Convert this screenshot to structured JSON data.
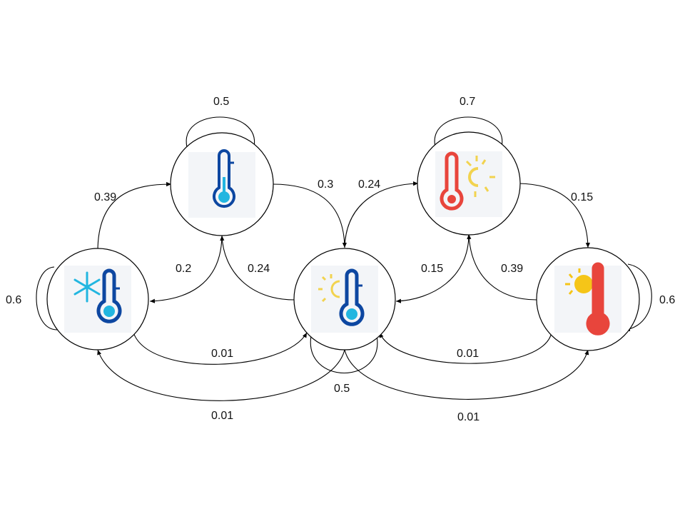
{
  "diagram": {
    "type": "markov-chain",
    "nodes": [
      {
        "id": "cold",
        "icon": "snowflake-thermometer-icon",
        "thermo_color": "#0d47a1",
        "accent": "#22b6e0"
      },
      {
        "id": "cool",
        "icon": "blue-thermometer-icon",
        "thermo_color": "#0d47a1",
        "accent": "#22b6e0"
      },
      {
        "id": "mild",
        "icon": "sun-blue-thermometer-icon",
        "thermo_color": "#0d47a1",
        "accent": "#f2d34f"
      },
      {
        "id": "warm",
        "icon": "red-thermometer-sun-icon",
        "thermo_color": "#e8453c",
        "accent": "#f2d34f"
      },
      {
        "id": "hot",
        "icon": "sun-red-thermometer-icon",
        "thermo_color": "#e8453c",
        "accent": "#f5c518"
      }
    ],
    "edges": [
      {
        "from": "cool",
        "to": "cool",
        "label": "0.5"
      },
      {
        "from": "warm",
        "to": "warm",
        "label": "0.7"
      },
      {
        "from": "cold",
        "to": "cool",
        "label": "0.39"
      },
      {
        "from": "cool",
        "to": "mild",
        "label": "0.3"
      },
      {
        "from": "mild",
        "to": "warm",
        "label": "0.24"
      },
      {
        "from": "warm",
        "to": "hot",
        "label": "0.15"
      },
      {
        "from": "cold",
        "to": "cold",
        "label": "0.6"
      },
      {
        "from": "cool",
        "to": "cold",
        "label": "0.2"
      },
      {
        "from": "mild",
        "to": "cool",
        "label": "0.24"
      },
      {
        "from": "warm",
        "to": "mild",
        "label": "0.15"
      },
      {
        "from": "hot",
        "to": "warm",
        "label": "0.39"
      },
      {
        "from": "hot",
        "to": "hot",
        "label": "0.6"
      },
      {
        "from": "cold",
        "to": "mild",
        "label": "0.01"
      },
      {
        "from": "hot",
        "to": "mild",
        "label": "0.01"
      },
      {
        "from": "mild",
        "to": "mild",
        "label": "0.5"
      },
      {
        "from": "mild",
        "to": "cold",
        "label": "0.01"
      },
      {
        "from": "mild",
        "to": "hot",
        "label": "0.01"
      }
    ]
  }
}
